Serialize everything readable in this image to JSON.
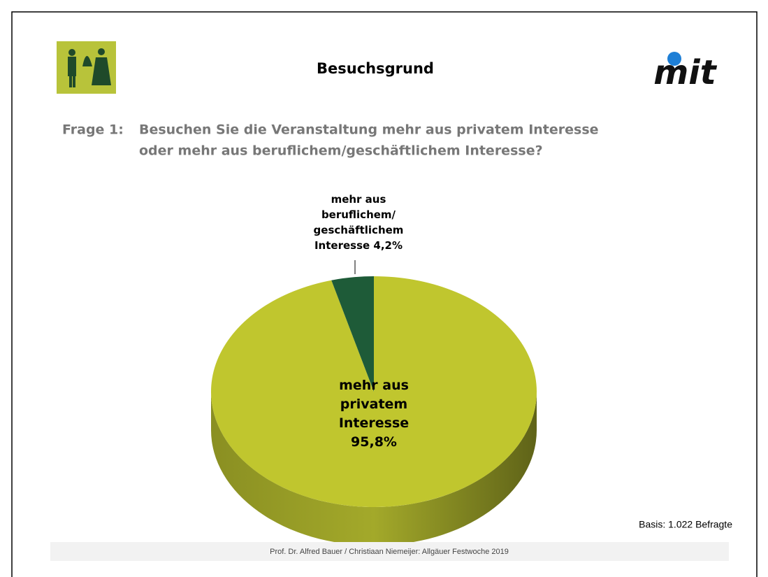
{
  "chart_data": {
    "type": "pie",
    "title": "Besuchsgrund",
    "question_label": "Frage 1:",
    "question_lines": [
      "Besuchen Sie die Veranstaltung mehr aus privatem Interesse",
      "oder mehr aus beruflichem/geschäftlichem Interesse?"
    ],
    "categories": [
      "mehr aus privatem Interesse",
      "mehr aus beruflichem/ geschäftlichem Interesse"
    ],
    "values": [
      95.8,
      4.2
    ],
    "value_labels": [
      "95,8%",
      "4,2%"
    ],
    "colors": [
      "#c0c62e",
      "#1e5b38"
    ],
    "note": "Basis: 1.022 Befragte",
    "footer": "Prof. Dr. Alfred Bauer  / Christiaan Niemeijer:  Allgäuer Festwoche 2019",
    "logo_text": "mit"
  }
}
